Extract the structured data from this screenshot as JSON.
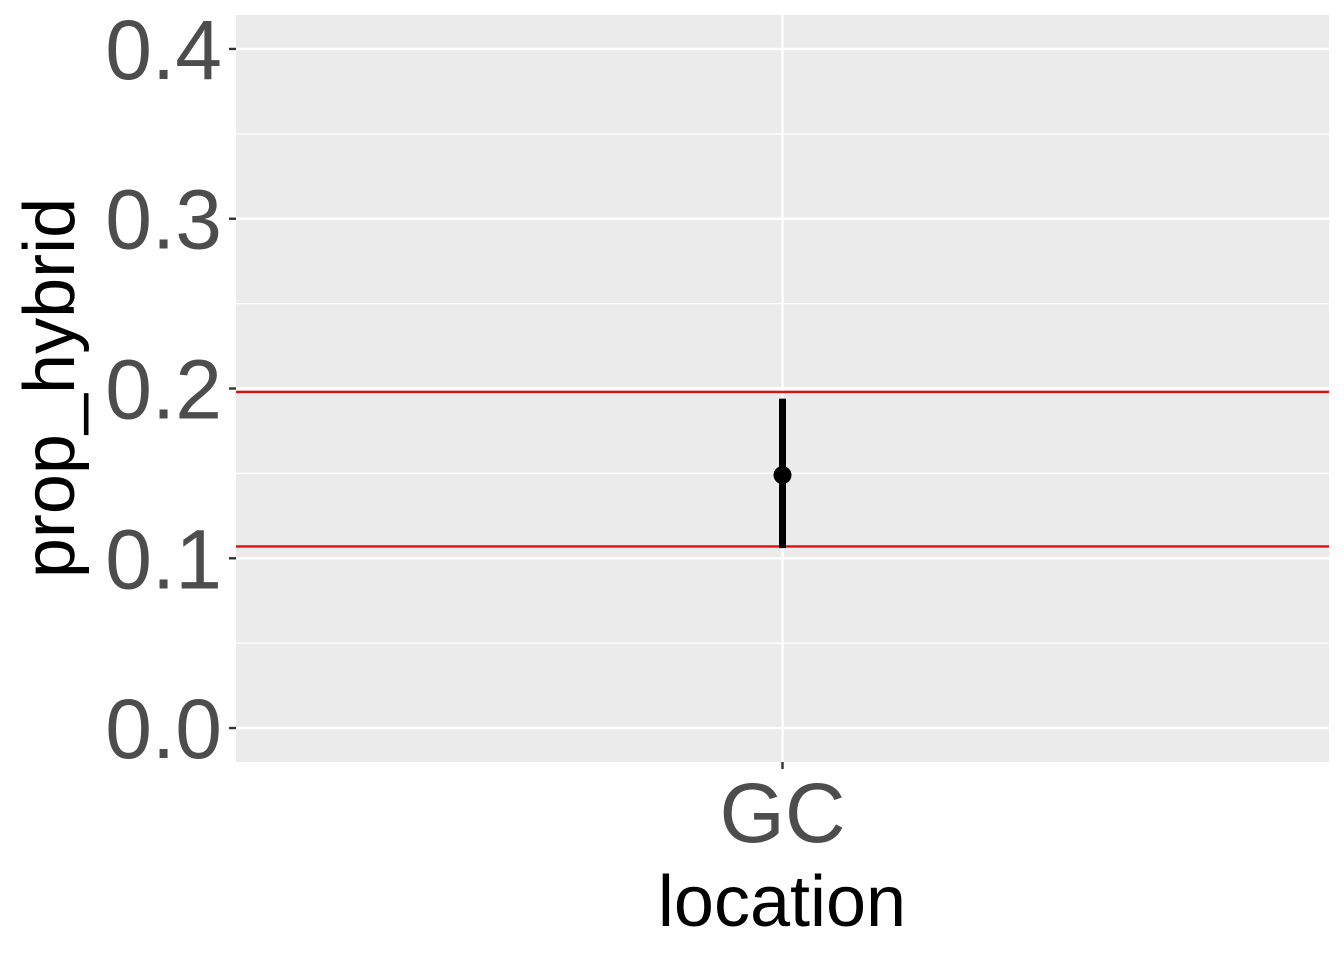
{
  "chart_data": {
    "type": "scatter",
    "title": "",
    "xlabel": "location",
    "ylabel": "prop_hybrid",
    "categories": [
      "GC"
    ],
    "points": [
      {
        "category": "GC",
        "y": 0.149,
        "ymin": 0.106,
        "ymax": 0.194
      }
    ],
    "reference_lines": [
      {
        "y": 0.198,
        "color": "#dd1111"
      },
      {
        "y": 0.107,
        "color": "#dd1111"
      }
    ],
    "ylim": [
      -0.02,
      0.42
    ],
    "y_ticks": [
      0.0,
      0.1,
      0.2,
      0.3,
      0.4
    ],
    "y_tick_labels": [
      "0.0",
      "0.1",
      "0.2",
      "0.3",
      "0.4"
    ],
    "grid": true,
    "panel_color": "#ebebeb",
    "grid_color": "#ffffff",
    "point_color": "#000000",
    "tick_label_color": "#4d4d4d"
  }
}
